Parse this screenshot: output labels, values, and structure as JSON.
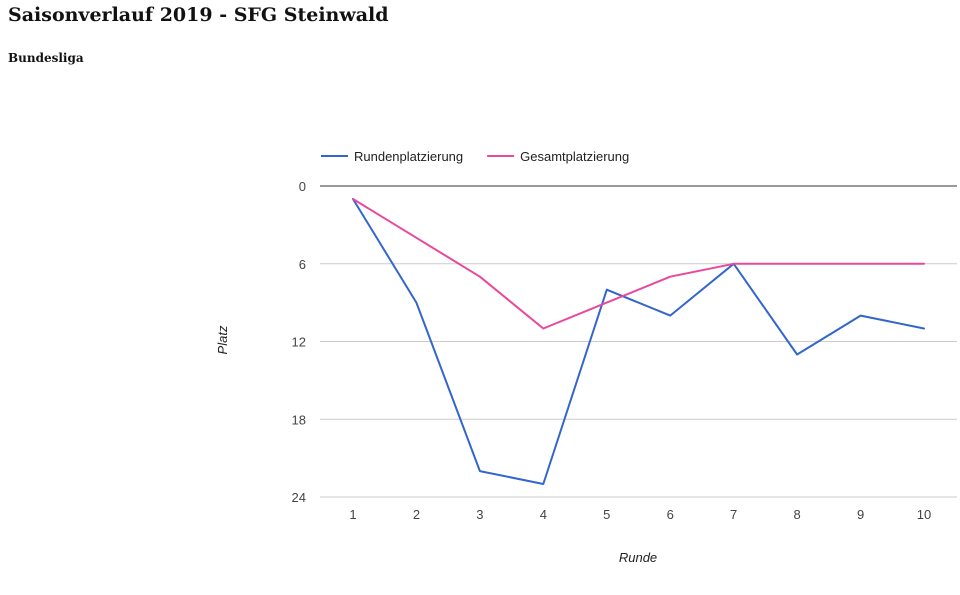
{
  "page": {
    "title": "Saisonverlauf 2019 - SFG Steinwald",
    "league": "Bundesliga"
  },
  "colors": {
    "rundenplatzierung": "#3366cc",
    "gesamtplatzierung": "#e9489b",
    "axis_text": "#444444",
    "grid": "#cccccc",
    "baseline": "#333333"
  },
  "chart_data": {
    "type": "line",
    "title": "",
    "xlabel": "Runde",
    "ylabel": "Platz",
    "x": [
      1,
      2,
      3,
      4,
      5,
      6,
      7,
      8,
      9,
      10
    ],
    "series": [
      {
        "name": "Rundenplatzierung",
        "values": [
          1,
          9,
          22,
          23,
          8,
          10,
          6,
          13,
          10,
          11
        ]
      },
      {
        "name": "Gesamtplatzierung",
        "values": [
          1,
          4,
          7,
          11,
          9,
          7,
          6,
          6,
          6,
          6
        ]
      }
    ],
    "ylim": [
      0,
      24
    ],
    "y_inverted": true,
    "yticks": [
      0,
      6,
      12,
      18,
      24
    ],
    "grid": true,
    "legend_position": "top-left"
  }
}
